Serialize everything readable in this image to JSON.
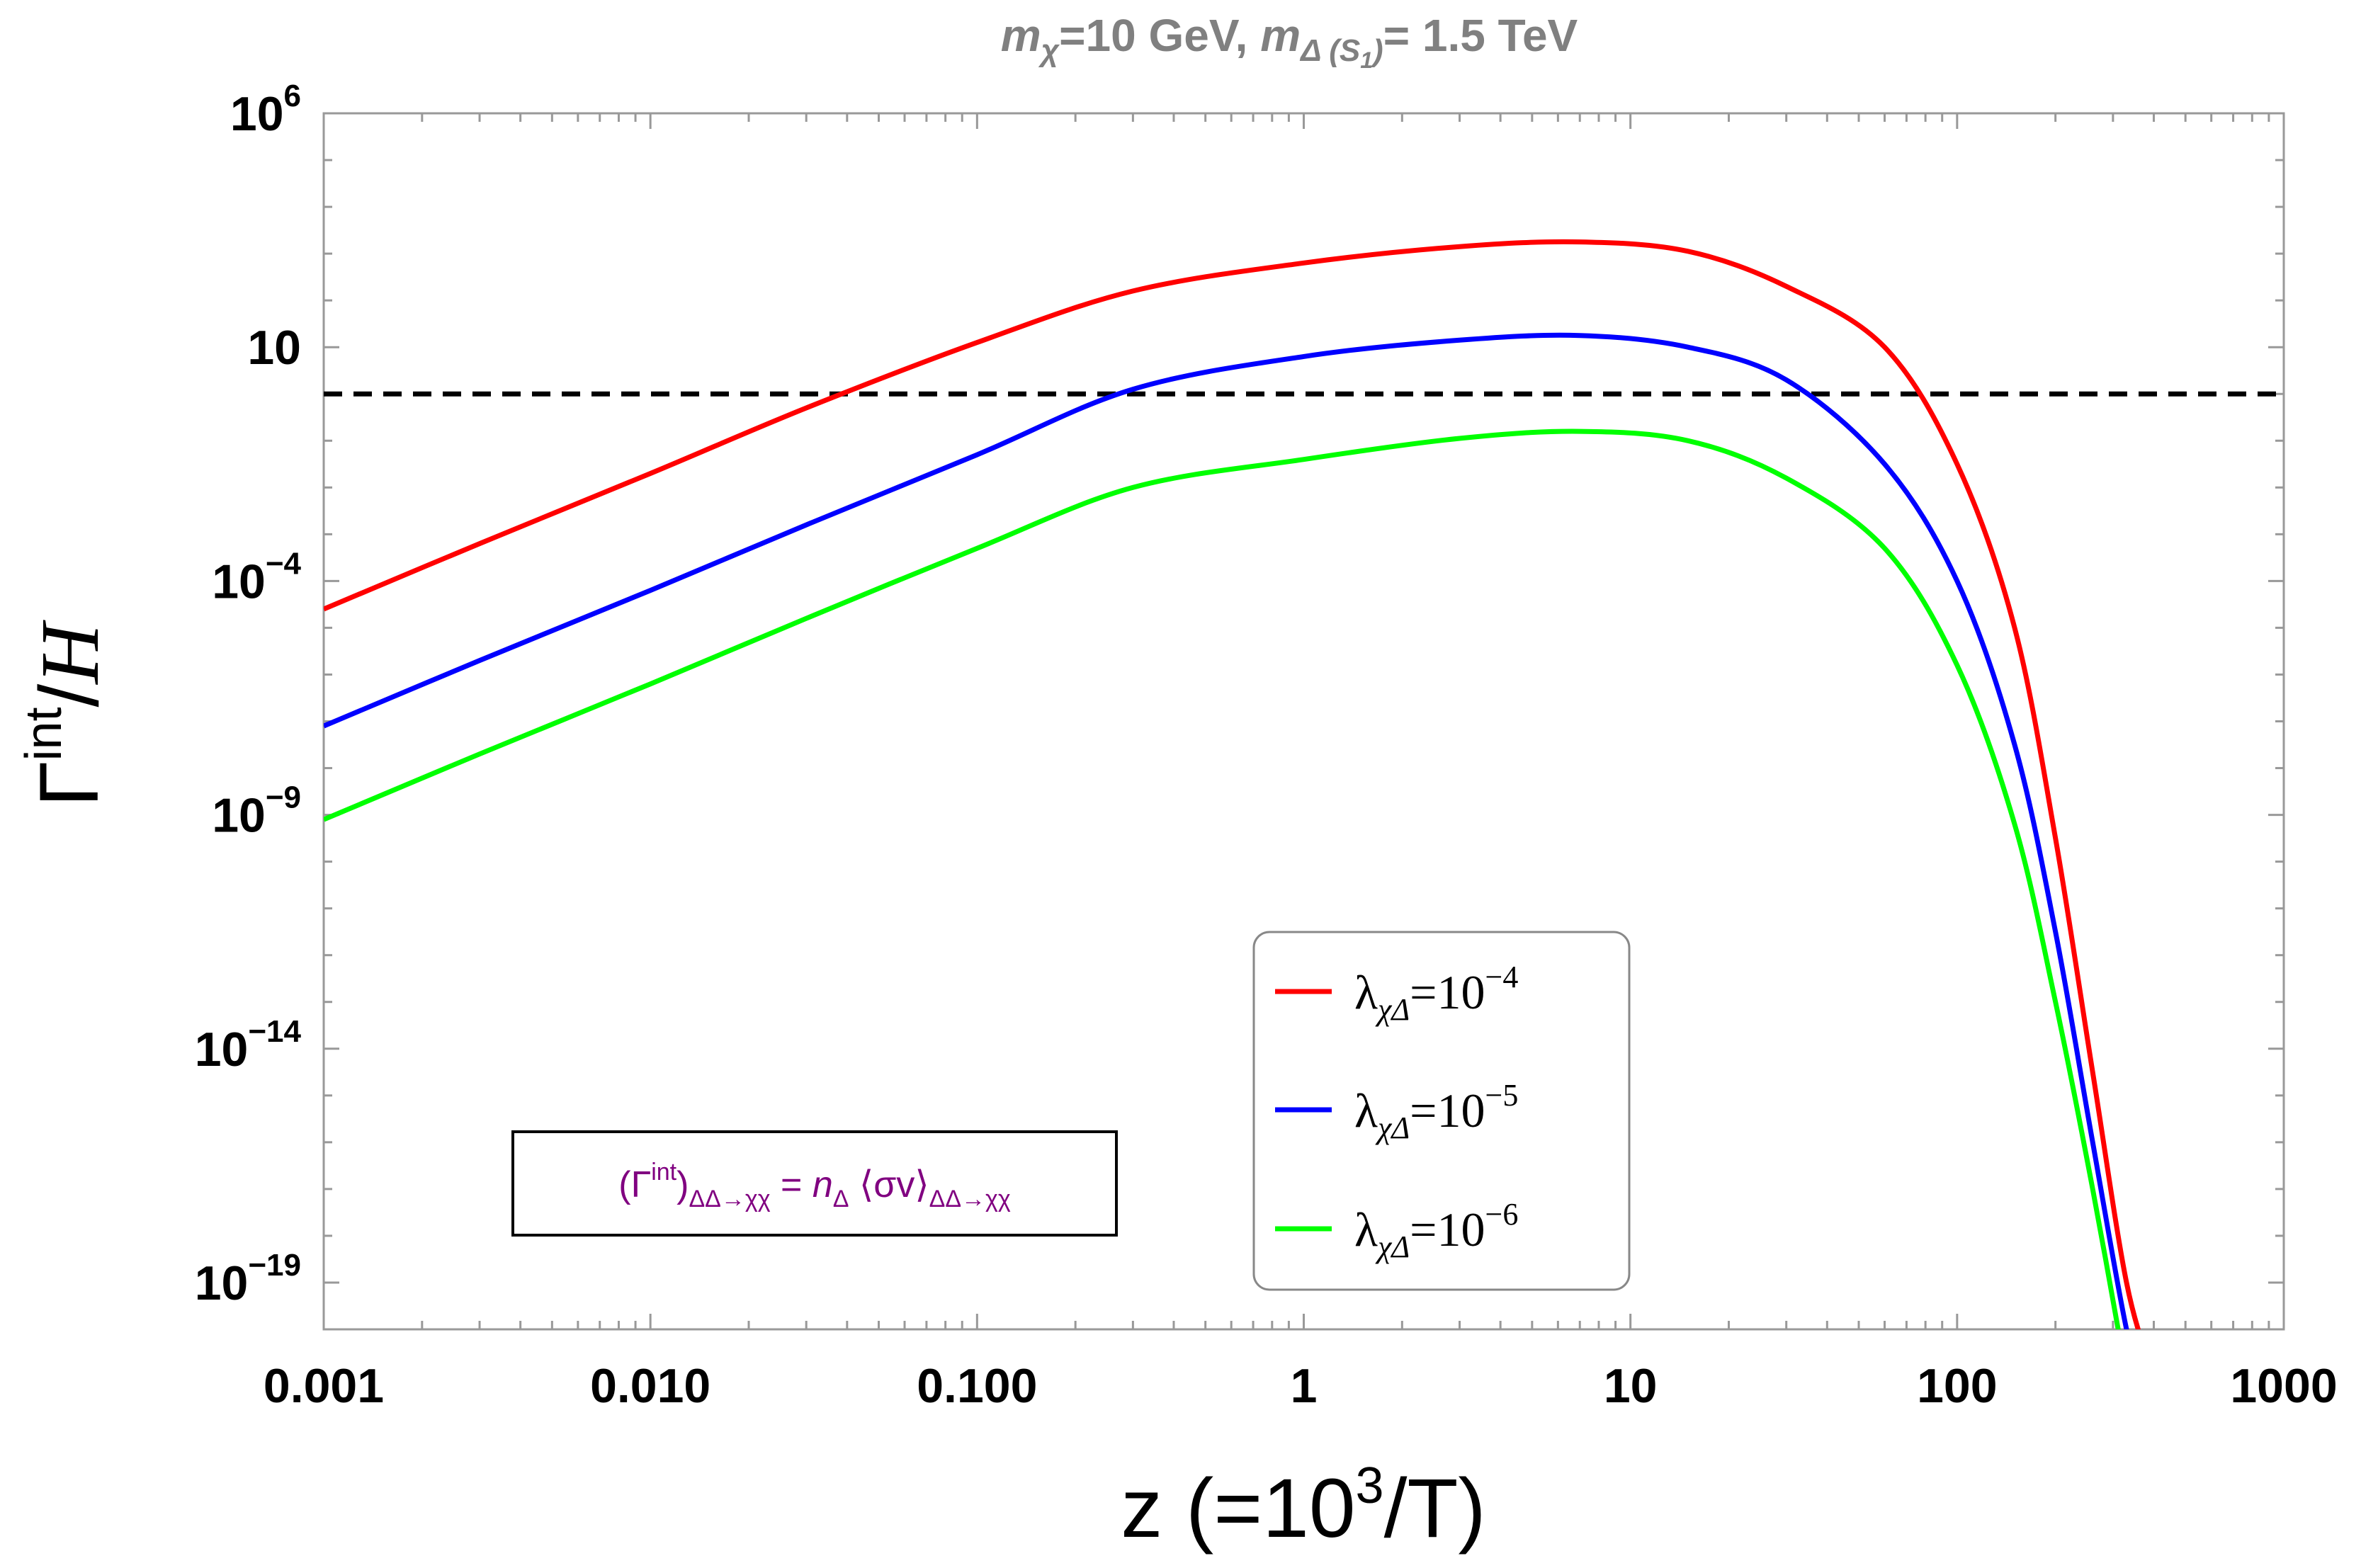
{
  "chart_data": {
    "type": "line",
    "title": "m_χ=10 GeV, m_Δ(S1)= 1.5 TeV",
    "title_parts": {
      "m1": "m",
      "sub1": "χ",
      "t1": "=10 GeV, ",
      "m2": "m",
      "sub2": "Δ (S",
      "sub2b": "1",
      "sub2c": ")",
      "t2": "= 1.5 TeV"
    },
    "xscale": "log",
    "yscale": "log",
    "xlim": [
      0.001,
      1000
    ],
    "ylim_log10": [
      -20,
      6
    ],
    "xlabel": "z (=10³/T)",
    "xlabel_parts": {
      "base": "z (=10",
      "sup": "3",
      "rest": "/T)"
    },
    "ylabel": "Γint/H",
    "ylabel_parts": {
      "gamma": "Γ",
      "sup": "int",
      "slash": "/",
      "h": "H"
    },
    "x_ticks": [
      {
        "value": 0.001,
        "label": "0.001"
      },
      {
        "value": 0.01,
        "label": "0.010"
      },
      {
        "value": 0.1,
        "label": "0.100"
      },
      {
        "value": 1,
        "label": "1"
      },
      {
        "value": 10,
        "label": "10"
      },
      {
        "value": 100,
        "label": "100"
      },
      {
        "value": 1000,
        "label": "1000"
      }
    ],
    "y_ticks": [
      {
        "log10": 6,
        "base": "10",
        "exp": "6"
      },
      {
        "log10": 1,
        "base": "10",
        "exp": ""
      },
      {
        "log10": -4,
        "base": "10",
        "exp": "−4"
      },
      {
        "log10": -9,
        "base": "10",
        "exp": "−9"
      },
      {
        "log10": -14,
        "base": "10",
        "exp": "−14"
      },
      {
        "log10": -19,
        "base": "10",
        "exp": "−19"
      }
    ],
    "reference_line": {
      "y": 1,
      "style": "dashed",
      "color": "#000000"
    },
    "series": [
      {
        "name": "λ_χΔ=10^−4",
        "label_sym": "λ",
        "label_sub": "χΔ",
        "label_eq": "=10",
        "label_exp": "−4",
        "color": "#ff0000",
        "points": [
          [
            0.001,
            -4.6
          ],
          [
            0.003,
            -3.2
          ],
          [
            0.01,
            -1.7
          ],
          [
            0.03,
            -0.3
          ],
          [
            0.1,
            1.1
          ],
          [
            0.3,
            2.2
          ],
          [
            1,
            2.8
          ],
          [
            3,
            3.15
          ],
          [
            7,
            3.25
          ],
          [
            15,
            3.05
          ],
          [
            30,
            2.3
          ],
          [
            60,
            1.0
          ],
          [
            100,
            -1.5
          ],
          [
            150,
            -5
          ],
          [
            200,
            -9.5
          ],
          [
            260,
            -14.5
          ],
          [
            330,
            -19
          ],
          [
            400,
            -21
          ]
        ]
      },
      {
        "name": "λ_χΔ=10^−5",
        "label_sym": "λ",
        "label_sub": "χΔ",
        "label_eq": "=10",
        "label_exp": "−5",
        "color": "#0000ff",
        "points": [
          [
            0.001,
            -7.1
          ],
          [
            0.003,
            -5.7
          ],
          [
            0.01,
            -4.2
          ],
          [
            0.03,
            -2.8
          ],
          [
            0.1,
            -1.3
          ],
          [
            0.3,
            0.1
          ],
          [
            1,
            0.8
          ],
          [
            3,
            1.15
          ],
          [
            7,
            1.25
          ],
          [
            15,
            1.0
          ],
          [
            30,
            0.3
          ],
          [
            60,
            -1.5
          ],
          [
            100,
            -4
          ],
          [
            150,
            -7.5
          ],
          [
            200,
            -11.5
          ],
          [
            260,
            -16
          ],
          [
            330,
            -20
          ],
          [
            370,
            -21
          ]
        ]
      },
      {
        "name": "λ_χΔ=10^−6",
        "label_sym": "λ",
        "label_sub": "χΔ",
        "label_eq": "=10",
        "label_exp": "−6",
        "color": "#00ff00",
        "points": [
          [
            0.001,
            -9.1
          ],
          [
            0.003,
            -7.7
          ],
          [
            0.01,
            -6.2
          ],
          [
            0.03,
            -4.8
          ],
          [
            0.1,
            -3.3
          ],
          [
            0.3,
            -2.0
          ],
          [
            1,
            -1.4
          ],
          [
            3,
            -0.95
          ],
          [
            7,
            -0.8
          ],
          [
            15,
            -1.0
          ],
          [
            30,
            -1.8
          ],
          [
            60,
            -3.3
          ],
          [
            100,
            -5.8
          ],
          [
            150,
            -9.2
          ],
          [
            200,
            -13
          ],
          [
            260,
            -17
          ],
          [
            330,
            -21
          ]
        ]
      }
    ],
    "legend": {
      "position": "bottom-right"
    },
    "annotation": {
      "color": "#800080",
      "open": "(Γ",
      "sup": "int",
      "close": ")",
      "sub1": "ΔΔ→χχ",
      "eq": " = ",
      "n": "n",
      "nsub": "Δ",
      "avg": " ⟨σv⟩",
      "sub2": "ΔΔ→χχ"
    }
  }
}
